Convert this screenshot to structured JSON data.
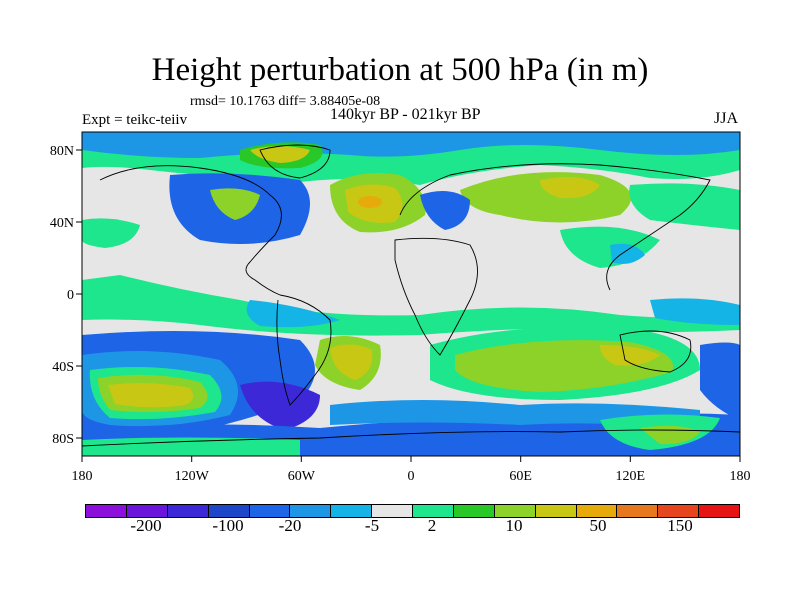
{
  "title": "Height perturbation at 500 hPa (in m)",
  "stats": "rmsd= 10.1763 diff= 3.88405e-08",
  "experiment": "Expt = teikc-teiiv",
  "period": "140kyr BP - 021kyr BP",
  "season": "JJA",
  "map": {
    "projection": "cylindrical equidistant",
    "lon_range": [
      -180,
      180
    ],
    "lat_range": [
      -90,
      90
    ],
    "background_color": "#e6e6e6",
    "x_ticks": [
      "180",
      "120W",
      "60W",
      "0",
      "60E",
      "120E",
      "180"
    ],
    "y_ticks": [
      "80N",
      "40N",
      "0",
      "40S",
      "80S"
    ]
  },
  "colorbar": {
    "colors": [
      "#8c0fdc",
      "#6a14dc",
      "#3c28d7",
      "#1e46c8",
      "#1e64e6",
      "#1e96e6",
      "#14b4e6",
      "#e6e6e6",
      "#1ee68c",
      "#28c828",
      "#8cd228",
      "#c8c814",
      "#e6aa0a",
      "#e6781e",
      "#e6461e",
      "#e61414"
    ],
    "labels": [
      "-200",
      "-100",
      "-20",
      "-5",
      "2",
      "10",
      "50",
      "150"
    ]
  }
}
